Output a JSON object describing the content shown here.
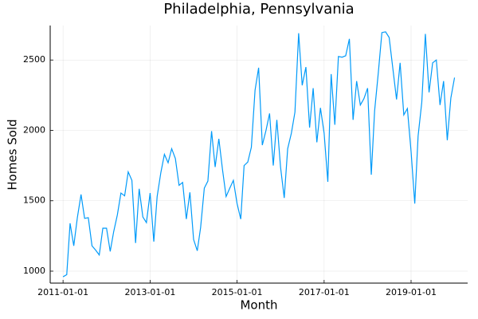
{
  "chart_data": {
    "type": "line",
    "title": "Philadelphia, Pennsylvania",
    "xlabel": "Month",
    "ylabel": "Homes Sold",
    "x": [
      "2011-01-01",
      "2011-02-01",
      "2011-03-01",
      "2011-04-01",
      "2011-05-01",
      "2011-06-01",
      "2011-07-01",
      "2011-08-01",
      "2011-09-01",
      "2011-10-01",
      "2011-11-01",
      "2011-12-01",
      "2012-01-01",
      "2012-02-01",
      "2012-03-01",
      "2012-04-01",
      "2012-05-01",
      "2012-06-01",
      "2012-07-01",
      "2012-08-01",
      "2012-09-01",
      "2012-10-01",
      "2012-11-01",
      "2012-12-01",
      "2013-01-01",
      "2013-02-01",
      "2013-03-01",
      "2013-04-01",
      "2013-05-01",
      "2013-06-01",
      "2013-07-01",
      "2013-08-01",
      "2013-09-01",
      "2013-10-01",
      "2013-11-01",
      "2013-12-01",
      "2014-01-01",
      "2014-02-01",
      "2014-03-01",
      "2014-04-01",
      "2014-05-01",
      "2014-06-01",
      "2014-07-01",
      "2014-08-01",
      "2014-09-01",
      "2014-10-01",
      "2014-11-01",
      "2014-12-01",
      "2015-01-01",
      "2015-02-01",
      "2015-03-01",
      "2015-04-01",
      "2015-05-01",
      "2015-06-01",
      "2015-07-01",
      "2015-08-01",
      "2015-09-01",
      "2015-10-01",
      "2015-11-01",
      "2015-12-01",
      "2016-01-01",
      "2016-02-01",
      "2016-03-01",
      "2016-04-01",
      "2016-05-01",
      "2016-06-01",
      "2016-07-01",
      "2016-08-01",
      "2016-09-01",
      "2016-10-01",
      "2016-11-01",
      "2016-12-01",
      "2017-01-01",
      "2017-02-01",
      "2017-03-01",
      "2017-04-01",
      "2017-05-01",
      "2017-06-01",
      "2017-07-01",
      "2017-08-01",
      "2017-09-01",
      "2017-10-01",
      "2017-11-01",
      "2017-12-01",
      "2018-01-01",
      "2018-02-01",
      "2018-03-01",
      "2018-04-01",
      "2018-05-01",
      "2018-06-01",
      "2018-07-01",
      "2018-08-01",
      "2018-09-01",
      "2018-10-01",
      "2018-11-01",
      "2018-12-01",
      "2019-01-01",
      "2019-02-01",
      "2019-03-01",
      "2019-04-01",
      "2019-05-01",
      "2019-06-01",
      "2019-07-01",
      "2019-08-01",
      "2019-09-01",
      "2019-10-01",
      "2019-11-01",
      "2019-12-01",
      "2020-01-01"
    ],
    "series": [
      {
        "name": "Homes Sold",
        "color": "#009af9",
        "values": [
          960,
          975,
          1340,
          1180,
          1380,
          1545,
          1375,
          1380,
          1180,
          1150,
          1115,
          1305,
          1305,
          1140,
          1280,
          1400,
          1555,
          1535,
          1705,
          1645,
          1200,
          1585,
          1385,
          1345,
          1555,
          1210,
          1530,
          1700,
          1830,
          1770,
          1870,
          1800,
          1610,
          1630,
          1370,
          1560,
          1225,
          1145,
          1310,
          1590,
          1640,
          1995,
          1740,
          1940,
          1720,
          1530,
          1590,
          1645,
          1480,
          1370,
          1750,
          1775,
          1880,
          2285,
          2445,
          1895,
          2000,
          2120,
          1750,
          2075,
          1740,
          1520,
          1870,
          1980,
          2130,
          2690,
          2320,
          2450,
          2020,
          2300,
          1915,
          2160,
          1980,
          1635,
          2400,
          2040,
          2525,
          2520,
          2530,
          2650,
          2075,
          2350,
          2180,
          2225,
          2300,
          1685,
          2140,
          2410,
          2695,
          2700,
          2660,
          2440,
          2220,
          2480,
          2110,
          2155,
          1850,
          1480,
          1960,
          2200,
          2685,
          2270,
          2480,
          2500,
          2180,
          2350,
          1930,
          2230,
          2375
        ]
      }
    ],
    "xlim": [
      "2010-09-15",
      "2020-04-20"
    ],
    "xticks": [
      "2011-01-01",
      "2013-01-01",
      "2015-01-01",
      "2017-01-01",
      "2019-01-01"
    ],
    "ylim": [
      915,
      2745
    ],
    "yticks": [
      1000,
      1500,
      2000,
      2500
    ],
    "grid": true
  }
}
